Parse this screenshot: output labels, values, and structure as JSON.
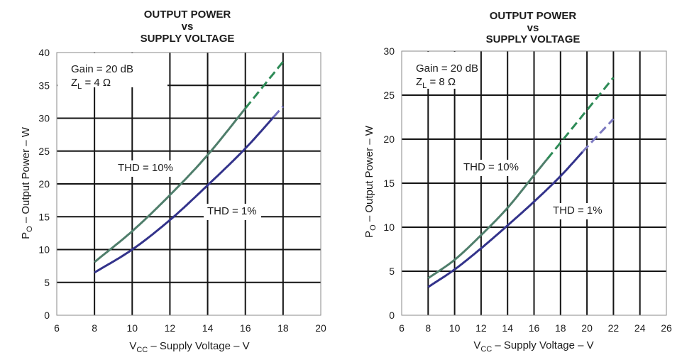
{
  "chart_data": [
    {
      "type": "line",
      "title_lines": [
        "OUTPUT POWER",
        "vs",
        "SUPPLY VOLTAGE"
      ],
      "xlabel": {
        "base": "V",
        "sub": "CC",
        "tail": " – Supply Voltage – V"
      },
      "ylabel": {
        "base": "P",
        "sub": "O",
        "tail": " – Output Power – W"
      },
      "xlim": [
        6,
        20
      ],
      "ylim": [
        0,
        40
      ],
      "xticks": [
        6,
        8,
        10,
        12,
        14,
        16,
        18,
        20
      ],
      "yticks": [
        0,
        5,
        10,
        15,
        20,
        25,
        30,
        35,
        40
      ],
      "grid": true,
      "annotations": {
        "gain": "Gain = 20 dB",
        "load": {
          "base": "Z",
          "sub": "L",
          "tail": " = 4 Ω"
        }
      },
      "series": [
        {
          "name": "THD = 10%",
          "x": [
            8,
            10,
            12,
            14,
            16,
            18
          ],
          "y": [
            8.1,
            12.8,
            18.3,
            24.4,
            31.5,
            38.6
          ],
          "dashed_from_x": 16,
          "color": "#4f7e6b",
          "dashed_color": "#2e8b57"
        },
        {
          "name": "THD = 1%",
          "x": [
            8,
            10,
            12,
            14,
            16,
            18
          ],
          "y": [
            6.5,
            10.0,
            14.5,
            19.8,
            25.4,
            31.8
          ],
          "dashed_from_x": 17.5,
          "color": "#33338b",
          "dashed_color": "#6e6bbd"
        }
      ]
    },
    {
      "type": "line",
      "title_lines": [
        "OUTPUT POWER",
        "vs",
        "SUPPLY VOLTAGE"
      ],
      "xlabel": {
        "base": "V",
        "sub": "CC",
        "tail": " – Supply Voltage – V"
      },
      "ylabel": {
        "base": "P",
        "sub": "O",
        "tail": " – Output Power – W"
      },
      "xlim": [
        6,
        26
      ],
      "ylim": [
        0,
        30
      ],
      "xticks": [
        6,
        8,
        10,
        12,
        14,
        16,
        18,
        20,
        22,
        24,
        26
      ],
      "yticks": [
        0,
        5,
        10,
        15,
        20,
        25,
        30
      ],
      "grid": true,
      "annotations": {
        "gain": "Gain = 20 dB",
        "load": {
          "base": "Z",
          "sub": "L",
          "tail": " = 8 Ω"
        }
      },
      "series": [
        {
          "name": "THD = 10%",
          "x": [
            8,
            10,
            12,
            14,
            16,
            18,
            20,
            22
          ],
          "y": [
            4.2,
            6.3,
            9.1,
            12.2,
            15.9,
            19.6,
            23.3,
            27.0
          ],
          "dashed_from_x": 17,
          "color": "#4f7e6b",
          "dashed_color": "#2e8b57"
        },
        {
          "name": "THD = 1%",
          "x": [
            8,
            10,
            12,
            14,
            16,
            18,
            20,
            22
          ],
          "y": [
            3.2,
            5.2,
            7.6,
            10.2,
            12.9,
            15.8,
            19.1,
            22.3
          ],
          "dashed_from_x": 19.7,
          "color": "#33338b",
          "dashed_color": "#7c79c0"
        }
      ]
    }
  ]
}
